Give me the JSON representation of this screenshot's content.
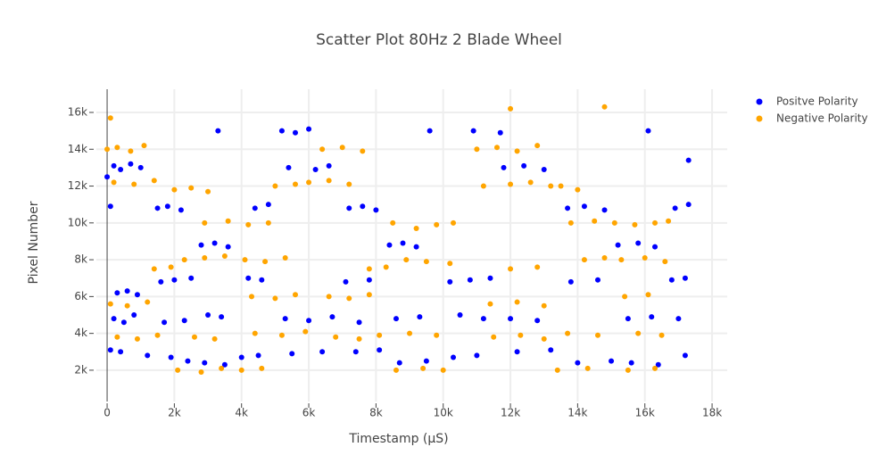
{
  "chart_data": {
    "type": "scatter",
    "title": "Scatter Plot 80Hz 2 Blade Wheel",
    "x_label": "Timestamp (μS)",
    "y_label": "Pixel Number",
    "xlim": [
      -320,
      18450
    ],
    "ylim": [
      300,
      17260
    ],
    "xticks": [
      0,
      {
        "value": 2000,
        "label": "2k"
      },
      {
        "value": 4000,
        "label": "4k"
      },
      {
        "value": 6000,
        "label": "6k"
      },
      {
        "value": 8000,
        "label": "8k"
      },
      {
        "value": 10000,
        "label": "10k"
      },
      {
        "value": 12000,
        "label": "12k"
      },
      {
        "value": 14000,
        "label": "14k"
      },
      {
        "value": 16000,
        "label": "16k"
      },
      {
        "value": 18000,
        "label": "18k"
      }
    ],
    "yticks": [
      {
        "value": 2000,
        "label": "2k"
      },
      {
        "value": 4000,
        "label": "4k"
      },
      {
        "value": 6000,
        "label": "6k"
      },
      {
        "value": 8000,
        "label": "8k"
      },
      {
        "value": 10000,
        "label": "10k"
      },
      {
        "value": 12000,
        "label": "12k"
      },
      {
        "value": 14000,
        "label": "14k"
      },
      {
        "value": 16000,
        "label": "16k"
      }
    ],
    "grid": true,
    "legend": "top-right",
    "series": [
      {
        "name": "Positve Polarity",
        "color": "#0000ff",
        "x": [
          0,
          100,
          200,
          400,
          700,
          1000,
          300,
          600,
          900,
          200,
          500,
          800,
          100,
          400,
          1200,
          1500,
          1800,
          2200,
          1600,
          2000,
          2500,
          1700,
          2300,
          1900,
          2400,
          2800,
          3200,
          3600,
          3000,
          3400,
          2900,
          3500,
          3300,
          4200,
          4600,
          4000,
          4500,
          4400,
          4800,
          5200,
          5600,
          6000,
          5400,
          6200,
          6600,
          5300,
          6000,
          6700,
          5500,
          6400,
          7200,
          7600,
          8000,
          7100,
          7800,
          7400,
          8100,
          7500,
          8400,
          8800,
          9200,
          8600,
          9300,
          8700,
          9500,
          9600,
          10200,
          10800,
          11400,
          10300,
          11000,
          10500,
          11200,
          10900,
          11700,
          11800,
          12400,
          13000,
          12000,
          12800,
          12200,
          13200,
          13700,
          14200,
          14800,
          13800,
          14600,
          14000,
          15000,
          15200,
          15800,
          16300,
          15500,
          16200,
          15600,
          16400,
          16100,
          16800,
          17200,
          16900,
          17300,
          17000,
          17200,
          17300
        ],
        "values": [
          12500,
          10900,
          13100,
          12900,
          13200,
          13000,
          6200,
          6300,
          6100,
          4800,
          4600,
          5000,
          3100,
          3000,
          2800,
          10800,
          10900,
          10700,
          6800,
          6900,
          7000,
          4600,
          4700,
          2700,
          2500,
          8800,
          8900,
          8700,
          5000,
          4900,
          2400,
          2300,
          15000,
          7000,
          6900,
          2700,
          2800,
          10800,
          11000,
          15000,
          14900,
          15100,
          13000,
          12900,
          13100,
          4800,
          4700,
          4900,
          2900,
          3000,
          10800,
          10900,
          10700,
          6800,
          6900,
          3000,
          3100,
          4600,
          8800,
          8900,
          8700,
          4800,
          4900,
          2400,
          2500,
          15000,
          6800,
          6900,
          7000,
          2700,
          2800,
          5000,
          4800,
          15000,
          14900,
          13000,
          13100,
          12900,
          4800,
          4700,
          3000,
          3100,
          10800,
          10900,
          10700,
          6800,
          6900,
          2400,
          2500,
          8800,
          8900,
          8700,
          4800,
          4900,
          2400,
          2300,
          15000,
          6900,
          7000,
          10800,
          11000,
          4800,
          2800,
          13400
        ]
      },
      {
        "name": "Negative Polarity",
        "color": "#ffa500",
        "x": [
          0,
          300,
          700,
          1100,
          200,
          800,
          1400,
          100,
          600,
          1200,
          300,
          900,
          1500,
          1400,
          1900,
          100,
          2000,
          2500,
          3000,
          2900,
          3600,
          4200,
          4800,
          2300,
          2900,
          3500,
          2100,
          2800,
          3400,
          2600,
          3200,
          4100,
          4700,
          5300,
          4300,
          5000,
          5600,
          4400,
          5200,
          5900,
          4000,
          4600,
          5000,
          5600,
          6000,
          6600,
          7200,
          6400,
          7000,
          7600,
          6600,
          7200,
          7800,
          6800,
          7500,
          8100,
          7800,
          8300,
          8500,
          9200,
          9800,
          10300,
          8900,
          9500,
          10200,
          8600,
          9400,
          10000,
          9000,
          9800,
          11000,
          11600,
          12200,
          12800,
          11200,
          12000,
          12600,
          13200,
          11400,
          12200,
          13000,
          11500,
          12300,
          13000,
          12000,
          12800,
          13500,
          14000,
          13800,
          14500,
          14200,
          14800,
          13400,
          14300,
          13700,
          14600,
          15100,
          15700,
          16300,
          16700,
          15300,
          16000,
          16600,
          15400,
          16100,
          15500,
          16300,
          15800,
          16500,
          14800,
          12000
        ],
        "values": [
          14000,
          14100,
          13900,
          14200,
          12200,
          12100,
          12300,
          5600,
          5500,
          5700,
          3800,
          3700,
          3900,
          7500,
          7600,
          15700,
          11800,
          11900,
          11700,
          10000,
          10100,
          9900,
          10000,
          8000,
          8100,
          8200,
          2000,
          1900,
          2100,
          3800,
          3700,
          8000,
          7900,
          8100,
          6000,
          5900,
          6100,
          4000,
          3900,
          4100,
          2000,
          2100,
          12000,
          12100,
          12200,
          12300,
          12100,
          14000,
          14100,
          13900,
          6000,
          5900,
          6100,
          3800,
          3700,
          3900,
          7500,
          7600,
          10000,
          9700,
          9900,
          10000,
          8000,
          7900,
          7800,
          2000,
          2100,
          2000,
          4000,
          3900,
          14000,
          14100,
          13900,
          14200,
          12000,
          12100,
          12200,
          12000,
          5600,
          5700,
          5500,
          3800,
          3900,
          3700,
          7500,
          7600,
          12000,
          11800,
          10000,
          10100,
          8000,
          8100,
          2000,
          2100,
          4000,
          3900,
          10000,
          9900,
          10000,
          10100,
          8000,
          8100,
          7900,
          6000,
          6100,
          2000,
          2100,
          4000,
          3900,
          16300,
          16200
        ]
      }
    ]
  }
}
